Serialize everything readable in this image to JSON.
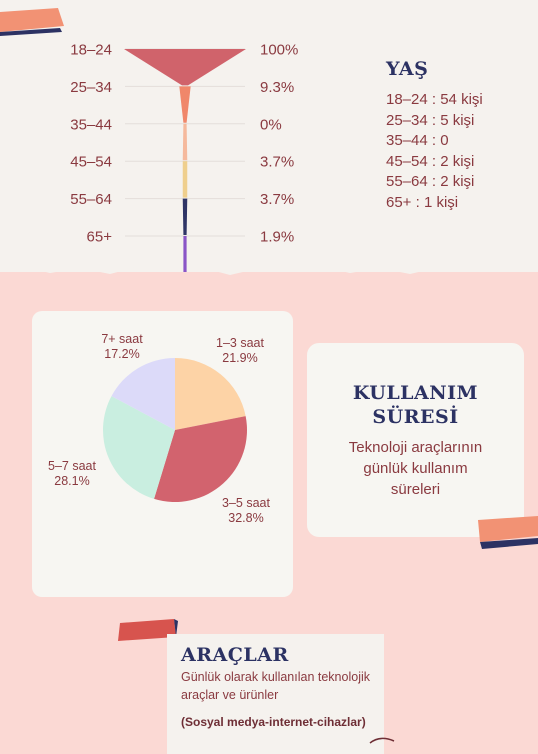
{
  "chart_data": [
    {
      "type": "funnel",
      "categories": [
        "18–24",
        "25–34",
        "35–44",
        "45–54",
        "55–64",
        "65+"
      ],
      "values": [
        100,
        9.3,
        0,
        3.7,
        3.7,
        1.9
      ],
      "value_labels": [
        "100%",
        "9.3%",
        "0%",
        "3.7%",
        "3.7%",
        "1.9%"
      ],
      "colors": [
        "#d0636b",
        "#f0876a",
        "#f5b99c",
        "#efcf8d",
        "#2f3566",
        "#8a55c7"
      ]
    },
    {
      "type": "pie",
      "slices": [
        {
          "label": "1–3 saat",
          "pct_label": "21.9%",
          "value": 21.9,
          "color": "#fdd3a6"
        },
        {
          "label": "3–5 saat",
          "pct_label": "32.8%",
          "value": 32.8,
          "color": "#d2636e"
        },
        {
          "label": "5–7 saat",
          "pct_label": "28.1%",
          "value": 28.1,
          "color": "#c9eee0"
        },
        {
          "label": "7+ saat",
          "pct_label": "17.2%",
          "value": 17.2,
          "color": "#dcdaf9"
        }
      ]
    }
  ],
  "age": {
    "title": "YAŞ",
    "lines": [
      "18–24 : 54 kişi",
      "25–34 : 5 kişi",
      "35–44 : 0",
      "45–54 : 2 kişi",
      "55–64 : 2 kişi",
      "65+ : 1 kişi"
    ]
  },
  "usage": {
    "title_line1": "KULLANIM",
    "title_line2": "SÜRESİ",
    "desc_line1": "Teknoloji araçlarının",
    "desc_line2": "günlük kullanım",
    "desc_line3": "süreleri"
  },
  "tools": {
    "title": "ARAÇLAR",
    "desc": "Günlük olarak kullanılan teknolojik araçlar ve ürünler",
    "note": "(Sosyal medya-internet-cihazlar)"
  },
  "colors": {
    "navy": "#2c3263",
    "maroon": "#8a3a40",
    "coral": "#f0876a",
    "pink_bg": "#fbd9d4"
  }
}
